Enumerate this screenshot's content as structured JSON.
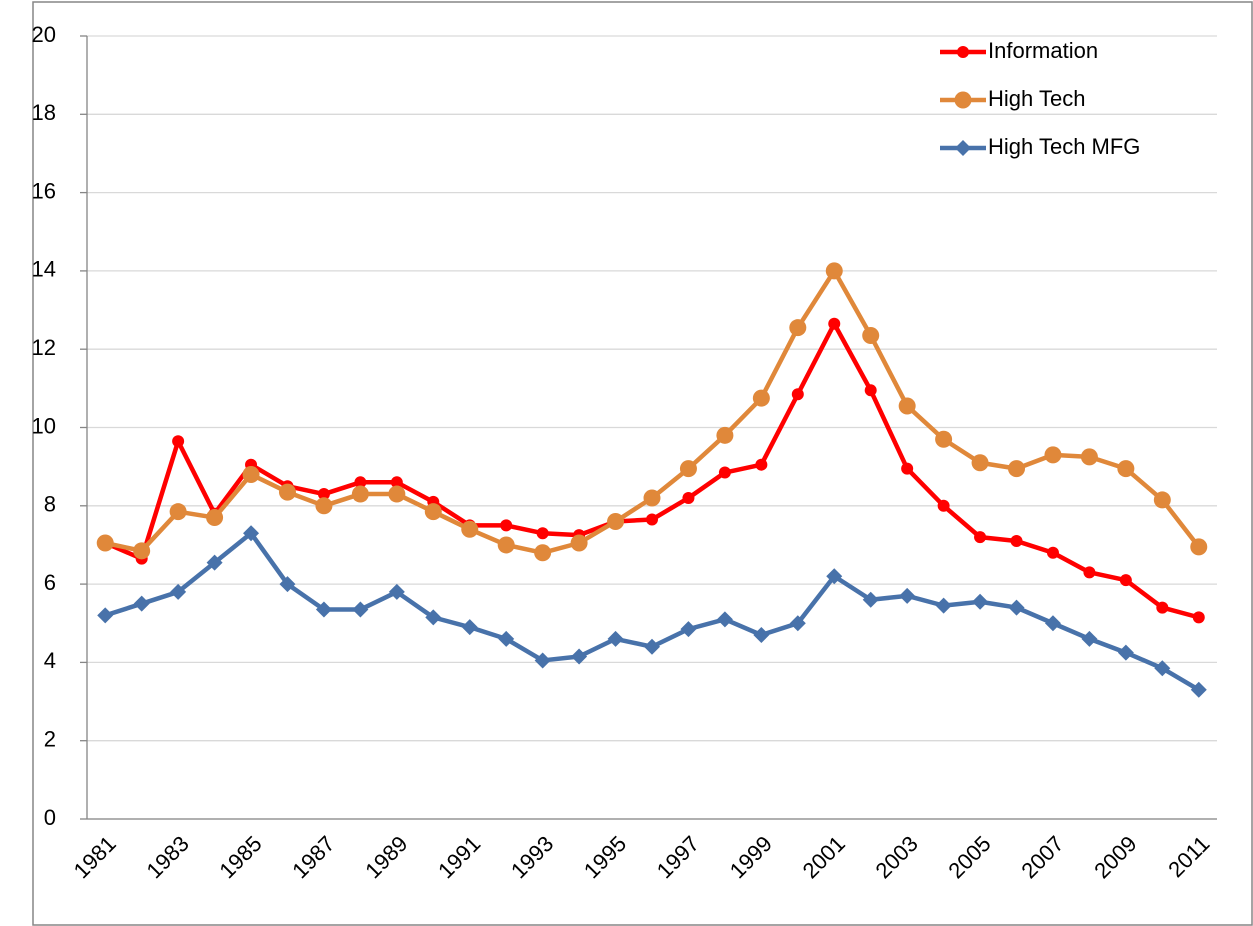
{
  "chart_data": {
    "type": "line",
    "categories": [
      "1981",
      null,
      "1983",
      null,
      "1985",
      null,
      "1987",
      null,
      "1989",
      null,
      "1991",
      null,
      "1993",
      null,
      "1995",
      null,
      "1997",
      null,
      "1999",
      null,
      "2001",
      null,
      "2003",
      null,
      "2005",
      null,
      "2007",
      null,
      "2009",
      null,
      "2011"
    ],
    "series": [
      {
        "name": "Information",
        "color": "#ff0000",
        "marker": "dot",
        "values": [
          7.05,
          6.65,
          9.65,
          7.8,
          9.05,
          8.5,
          8.3,
          8.6,
          8.6,
          8.1,
          7.5,
          7.5,
          7.3,
          7.25,
          7.6,
          7.65,
          8.2,
          8.85,
          9.05,
          10.85,
          12.65,
          10.95,
          8.95,
          8.0,
          7.2,
          7.1,
          6.8,
          6.3,
          6.1,
          5.4,
          5.15
        ]
      },
      {
        "name": "High Tech",
        "color": "#e0883a",
        "marker": "circle",
        "values": [
          7.05,
          6.85,
          7.85,
          7.7,
          8.8,
          8.35,
          8.0,
          8.3,
          8.3,
          7.85,
          7.4,
          7.0,
          6.8,
          7.05,
          7.6,
          8.2,
          8.95,
          9.8,
          10.75,
          12.55,
          14.0,
          12.35,
          10.55,
          9.7,
          9.1,
          8.95,
          9.3,
          9.25,
          8.95,
          8.15,
          6.95
        ]
      },
      {
        "name": "High Tech MFG",
        "color": "#4872aa",
        "marker": "diamond",
        "values": [
          5.2,
          5.5,
          5.8,
          6.55,
          7.3,
          6.0,
          5.35,
          5.35,
          5.8,
          5.15,
          4.9,
          4.6,
          4.05,
          4.15,
          4.6,
          4.4,
          4.85,
          5.1,
          4.7,
          5.0,
          6.2,
          5.6,
          5.7,
          5.45,
          5.55,
          5.4,
          5.0,
          4.6,
          4.25,
          3.85,
          3.3
        ]
      }
    ],
    "ylim": [
      0,
      20
    ],
    "yticks": [
      0,
      2,
      4,
      6,
      8,
      10,
      12,
      14,
      16,
      18,
      20
    ],
    "grid": true,
    "legend": "upper right"
  }
}
